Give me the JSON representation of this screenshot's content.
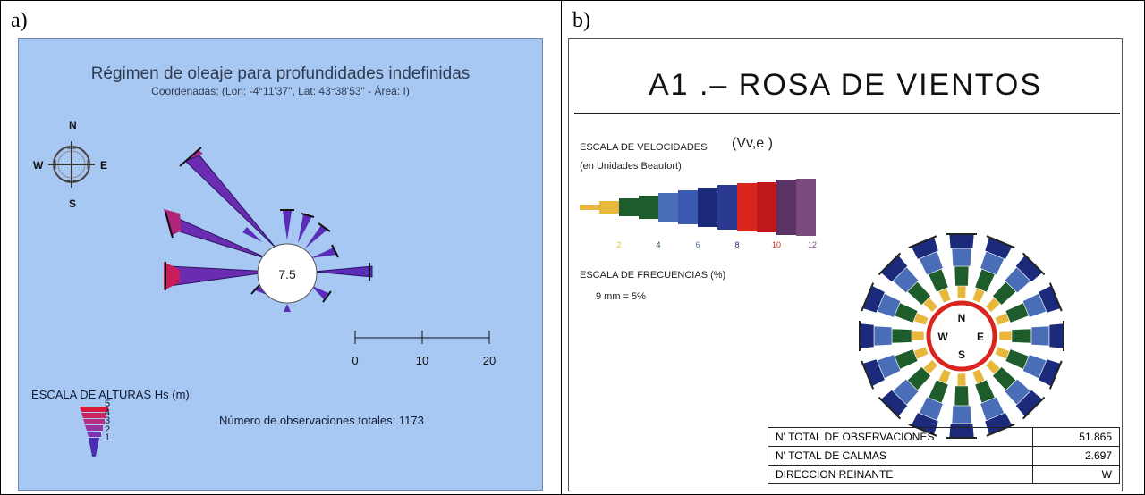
{
  "panel_a": {
    "label": "a)",
    "title": "Régimen de oleaje para profundidades indefinidas",
    "coords": "Coordenadas: (Lon: -4°11'37\", Lat: 43°38'53\" - Área: I)",
    "compass": {
      "n": "N",
      "s": "S",
      "e": "E",
      "w": "W"
    },
    "center_value": "7.5",
    "scale_ticks": [
      "0",
      "10",
      "20"
    ],
    "height_scale_title": "ESCALA DE ALTURAS Hs (m)",
    "height_scale_values": [
      "5",
      "4",
      "3",
      "2",
      "1"
    ],
    "observations": "Número de observaciones totales:  1173",
    "colors": {
      "background": "#a8c8f4",
      "low": "#3a2fa8",
      "high": "#d4184e"
    }
  },
  "panel_b": {
    "label": "b)",
    "title": "A1 .– ROSA DE VIENTOS",
    "speed_scale_title": "ESCALA DE VELOCIDADES",
    "speed_symbol": "(Vv,e )",
    "speed_units": "(en Unidades Beaufort)",
    "speed_ticks": [
      "2",
      "4",
      "6",
      "8",
      "10",
      "12"
    ],
    "frequency_title": "ESCALA DE FRECUENCIAS (%)",
    "frequency_value": "9  mm  =  5%",
    "compass": {
      "n": "N",
      "s": "S",
      "e": "E",
      "w": "W"
    },
    "table": [
      {
        "label": "N' TOTAL  DE  OBSERVACIONES",
        "value": "51.865"
      },
      {
        "label": "N' TOTAL  DE  CALMAS",
        "value": "2.697"
      },
      {
        "label": "DIRECCION  REINANTE",
        "value": "W"
      }
    ],
    "colors": {
      "yellow": "#e7b83b",
      "green": "#1f5c2c",
      "blue": "#4a6db8",
      "navy": "#1b2a7a",
      "red": "#d9251e",
      "purple": "#5b3264"
    }
  }
}
